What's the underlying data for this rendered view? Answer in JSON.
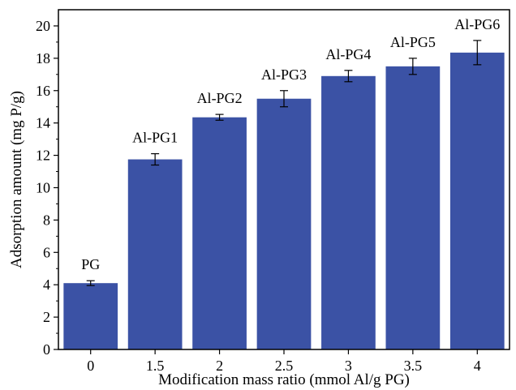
{
  "chart_data": {
    "type": "bar",
    "xlabel": "Modification mass ratio (mmol Al/g PG)",
    "ylabel": "Adsorption amount (mg P/g)",
    "categories": [
      "0",
      "1.5",
      "2",
      "2.5",
      "3",
      "3.5",
      "4"
    ],
    "bar_labels": [
      "PG",
      "Al-PG1",
      "Al-PG2",
      "Al-PG3",
      "Al-PG4",
      "Al-PG5",
      "Al-PG6"
    ],
    "values": [
      4.1,
      11.75,
      14.35,
      15.5,
      16.9,
      17.5,
      18.35
    ],
    "errors": [
      0.15,
      0.35,
      0.18,
      0.5,
      0.35,
      0.5,
      0.75
    ],
    "ylim": [
      0,
      21
    ],
    "yticks": [
      0,
      2,
      4,
      6,
      8,
      10,
      12,
      14,
      16,
      18,
      20
    ],
    "grid": false,
    "bar_color": "#3b52a5"
  }
}
